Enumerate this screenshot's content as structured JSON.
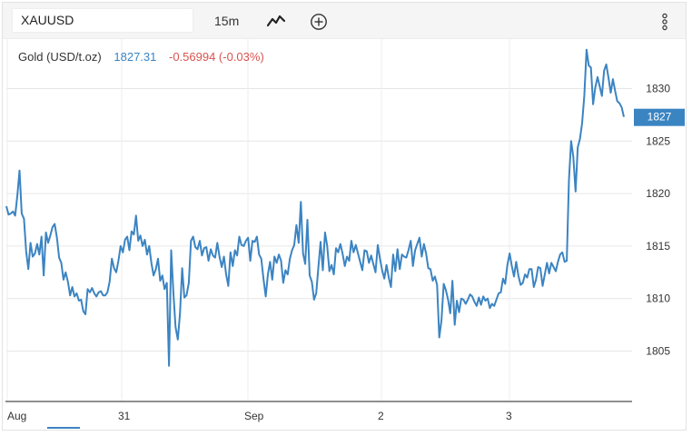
{
  "toolbar": {
    "symbol": "XAUUSD",
    "interval": "15m",
    "icons": [
      "line-style-icon",
      "add-indicator-icon",
      "more-options-icon"
    ]
  },
  "legend": {
    "name": "Gold (USD/t.oz)",
    "price": "1827.31",
    "change": "-0.56994 (-0.03%)"
  },
  "colors": {
    "line": "#3b84c2",
    "negative": "#d9534f",
    "grid": "#e6e6e6",
    "last_price_bg": "#3b84c2"
  },
  "chart_data": {
    "type": "line",
    "title": "",
    "xlabel": "",
    "ylabel": "",
    "x_tick_labels": [
      "Aug",
      "31",
      "Sep",
      "2",
      "3"
    ],
    "y_ticks": [
      1805,
      1810,
      1815,
      1820,
      1825,
      1830
    ],
    "ylim": [
      1800.2,
      1834.8
    ],
    "last_price_label": "1827",
    "grid": "horizontal",
    "series": [
      {
        "values": [
          1818.8,
          1818.0,
          1818.1,
          1818.3,
          1817.9,
          1819.8,
          1822.2,
          1818.1,
          1817.6,
          1814.5,
          1812.8,
          1815.3,
          1814.0,
          1814.3,
          1815.2,
          1814.2,
          1815.9,
          1812.2,
          1816.3,
          1815.3,
          1816.0,
          1816.8,
          1817.1,
          1815.8,
          1813.9,
          1813.4,
          1811.8,
          1812.5,
          1811.6,
          1810.3,
          1811.1,
          1810.2,
          1810.5,
          1809.8,
          1809.9,
          1808.8,
          1808.5,
          1810.9,
          1810.6,
          1811.0,
          1810.5,
          1810.2,
          1810.6,
          1810.7,
          1810.3,
          1810.3,
          1810.6,
          1811.6,
          1813.8,
          1812.9,
          1812.5,
          1813.6,
          1815.0,
          1814.4,
          1815.6,
          1815.9,
          1814.6,
          1816.4,
          1816.1,
          1817.9,
          1815.5,
          1816.0,
          1815.0,
          1815.6,
          1814.2,
          1815.0,
          1813.4,
          1812.2,
          1812.8,
          1813.8,
          1811.7,
          1812.2,
          1810.9,
          1811.5,
          1803.6,
          1814.6,
          1810.6,
          1807.3,
          1806.1,
          1808.6,
          1812.9,
          1810.1,
          1810.3,
          1811.5,
          1815.5,
          1815.9,
          1814.9,
          1814.7,
          1815.5,
          1814.1,
          1814.8,
          1814.9,
          1813.6,
          1814.7,
          1814.1,
          1813.9,
          1815.3,
          1814.0,
          1813.0,
          1814.0,
          1812.3,
          1811.2,
          1814.4,
          1813.1,
          1814.6,
          1814.1,
          1815.9,
          1815.1,
          1815.0,
          1815.5,
          1815.8,
          1813.6,
          1815.5,
          1815.4,
          1815.9,
          1814.2,
          1813.8,
          1811.9,
          1810.2,
          1812.3,
          1813.5,
          1811.8,
          1814.0,
          1813.4,
          1814.2,
          1813.6,
          1811.5,
          1812.7,
          1812.3,
          1813.8,
          1814.6,
          1815.1,
          1817.0,
          1815.3,
          1819.2,
          1814.3,
          1813.3,
          1817.5,
          1812.2,
          1811.6,
          1809.9,
          1810.5,
          1813.0,
          1815.4,
          1812.7,
          1816.3,
          1815.0,
          1812.6,
          1813.2,
          1812.3,
          1814.8,
          1814.4,
          1815.2,
          1814.3,
          1813.1,
          1814.0,
          1813.6,
          1815.5,
          1814.4,
          1815.1,
          1814.3,
          1813.5,
          1812.7,
          1814.6,
          1814.5,
          1813.4,
          1814.1,
          1813.3,
          1812.5,
          1815.1,
          1813.8,
          1812.7,
          1811.9,
          1813.2,
          1812.0,
          1811.1,
          1814.2,
          1812.6,
          1814.7,
          1812.8,
          1814.2,
          1814.0,
          1813.9,
          1814.6,
          1815.5,
          1813.1,
          1814.6,
          1815.2,
          1815.8,
          1814.0,
          1815.2,
          1814.3,
          1812.9,
          1812.8,
          1811.7,
          1812.1,
          1811.3,
          1806.3,
          1807.9,
          1811.4,
          1810.8,
          1809.9,
          1808.6,
          1811.7,
          1807.5,
          1809.8,
          1808.7,
          1810.0,
          1809.9,
          1809.5,
          1809.9,
          1810.4,
          1810.2,
          1809.7,
          1809.3,
          1810.1,
          1809.4,
          1810.2,
          1809.8,
          1810.0,
          1809.1,
          1809.5,
          1809.3,
          1809.9,
          1810.5,
          1810.6,
          1811.9,
          1811.4,
          1813.2,
          1814.3,
          1813.1,
          1812.1,
          1813.5,
          1812.2,
          1811.3,
          1811.5,
          1812.3,
          1812.0,
          1812.8,
          1812.8,
          1811.1,
          1811.8,
          1813.0,
          1812.9,
          1811.2,
          1812.3,
          1813.4,
          1812.4,
          1813.4,
          1813.0,
          1812.6,
          1813.5,
          1814.2,
          1814.4,
          1813.5,
          1813.6,
          1821.3,
          1825.0,
          1823.5,
          1820.2,
          1824.4,
          1825.2,
          1826.7,
          1829.3,
          1833.7,
          1832.2,
          1832.0,
          1828.5,
          1830.1,
          1831.1,
          1830.2,
          1829.3,
          1831.7,
          1832.3,
          1831.0,
          1829.6,
          1830.9,
          1829.8,
          1828.8,
          1828.6,
          1828.2,
          1827.3
        ]
      }
    ]
  }
}
